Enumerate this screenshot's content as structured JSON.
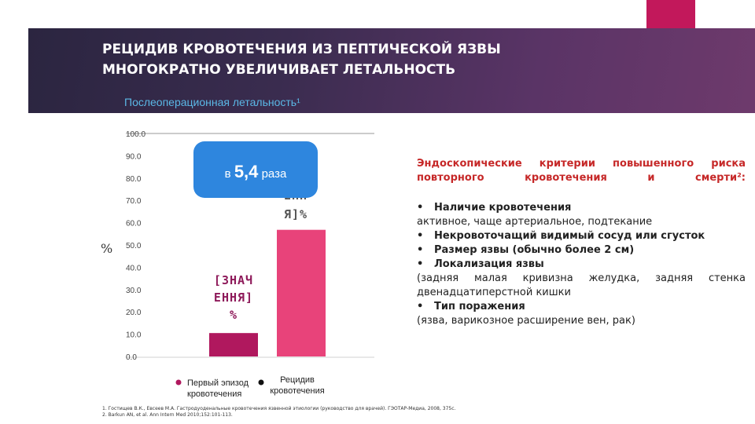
{
  "header": {
    "title_line1": "РЕЦИДИВ КРОВОТЕЧЕНИЯ ИЗ ПЕПТИЧЕСКОЙ ЯЗВЫ",
    "title_line2": "МНОГОКРАТНО УВЕЛИЧИВАЕТ ЛЕТАЛЬНОСТЬ",
    "subtitle": "Послеоперационная летальность¹"
  },
  "colors": {
    "header_start": "#2b2540",
    "header_end": "#6e3a6c",
    "accent": "#c2185b",
    "bar_first": "#b0185e",
    "bar_recurrence": "#e8437a",
    "callout": "#2e86de",
    "callout_text": "#ffffff",
    "label_purple": "#8e1a5a",
    "criteria_title": "#c62828"
  },
  "chart_data": {
    "type": "bar",
    "ylabel": "%",
    "ylim": [
      0,
      100
    ],
    "yticks": [
      "100.0",
      "90.0",
      "80.0",
      "70.0",
      "60.0",
      "50.0",
      "40.0",
      "30.0",
      "20.0",
      "10.0",
      "0.0"
    ],
    "categories": [
      "Первый эпизод кровотечения",
      "Рецидив кровотечения"
    ],
    "category_lines": [
      [
        "Первый эпизод",
        "кровотечения"
      ],
      [
        "Рецидив",
        "кровотечения"
      ]
    ],
    "values": [
      10.5,
      56.8
    ],
    "data_labels": [
      [
        "[ЗНАЧ",
        "ЕННЯ]",
        "%"
      ],
      [
        "ЕНН",
        "Я]%"
      ]
    ],
    "callout": {
      "prefix": "в",
      "value": "5,4",
      "suffix": "раза"
    },
    "legend_placement": "bottom",
    "grid": false
  },
  "criteria": {
    "title_line1": "Эндоскопические критерии повышенного риска",
    "title_line2": "повторного кровотечения и смерти²:",
    "lines": [
      {
        "text": "Наличие кровотечения",
        "bullet": true,
        "justify": false
      },
      {
        "text": "активное, чаще артериальное, подтекание",
        "bullet": false,
        "justify": false
      },
      {
        "text": "Некровоточащий видимый сосуд или сгусток",
        "bullet": true,
        "justify": false
      },
      {
        "text": "Размер язвы (обычно более 2 см)",
        "bullet": true,
        "justify": false
      },
      {
        "text": "Локализация язвы",
        "bullet": true,
        "justify": false
      },
      {
        "text": "(задняя малая кривизна желудка, задняя стенка",
        "bullet": false,
        "justify": true
      },
      {
        "text": "двенадцатиперстной кишки",
        "bullet": false,
        "justify": false
      },
      {
        "text": "Тип поражения",
        "bullet": true,
        "justify": false
      },
      {
        "text": "(язва, варикозное расширение вен, рак)",
        "bullet": false,
        "justify": false
      }
    ]
  },
  "footnotes": [
    "1. Гостищев В.К., Евсеев М.А. Гастродуоденальные кровотечения язвенной этиологии (руководство для врачей). ГЭОТАР-Медиа, 2008, 375с.",
    "2. Barkun AN, et al. Ann Intern Med 2010;152:101-113."
  ]
}
